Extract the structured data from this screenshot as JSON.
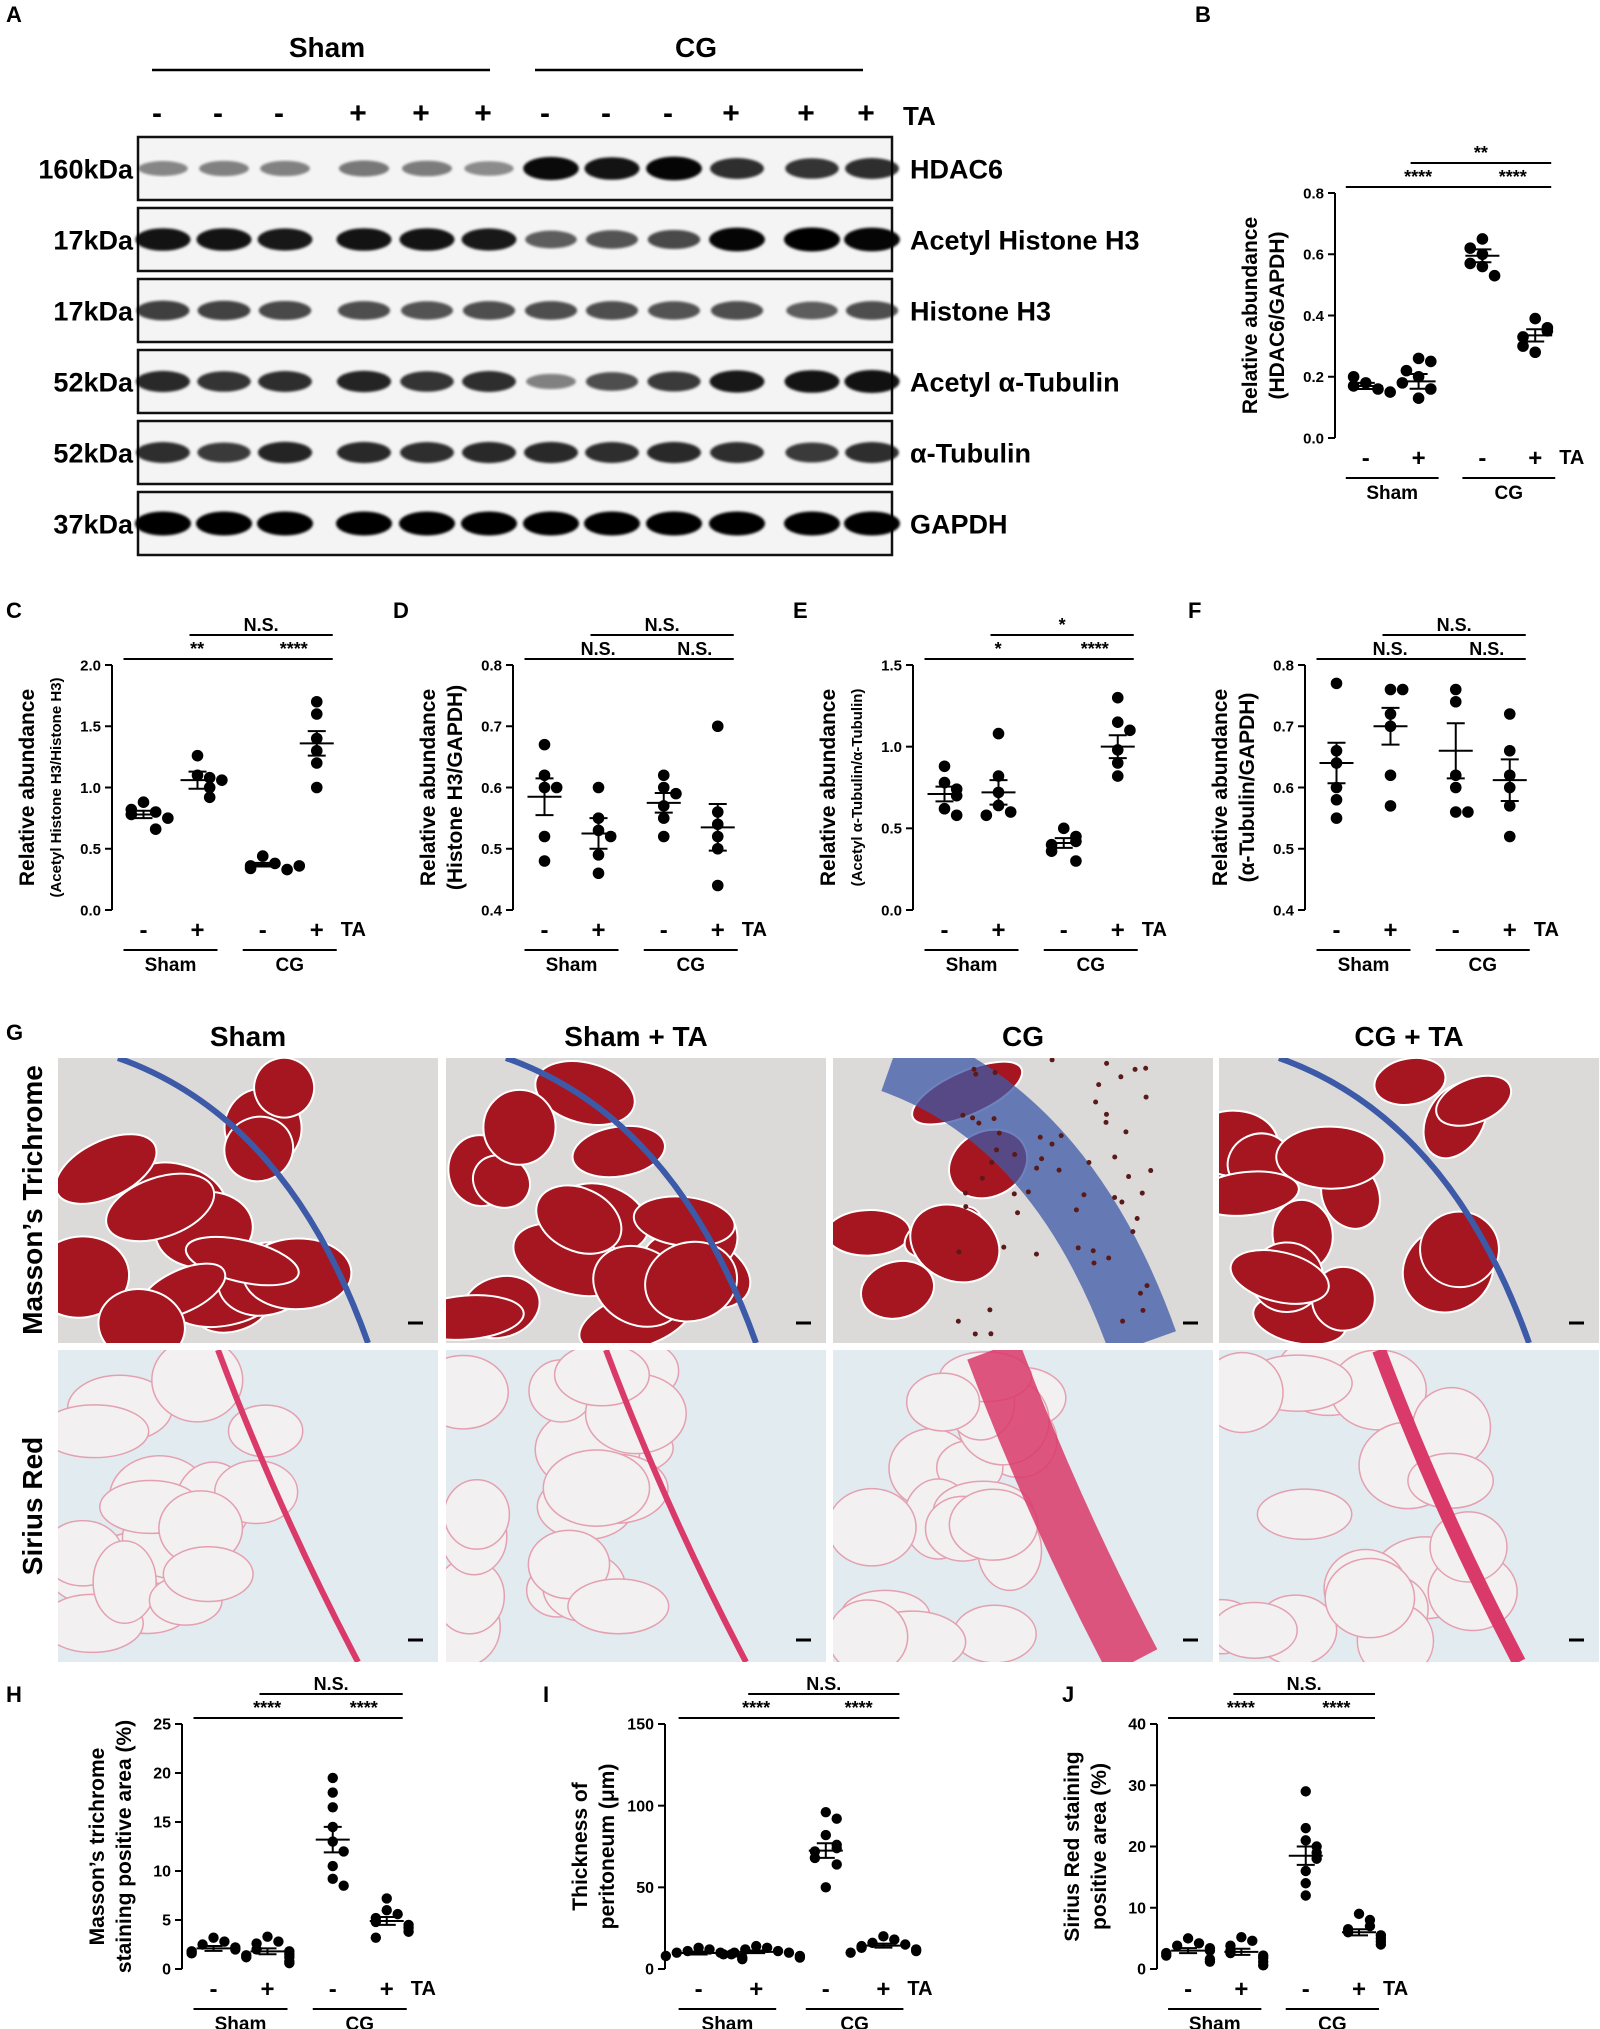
{
  "figure": {
    "panel_letters": [
      "A",
      "B",
      "C",
      "D",
      "E",
      "F",
      "G",
      "H",
      "I",
      "J"
    ]
  },
  "western_blot": {
    "groups": [
      "Sham",
      "CG"
    ],
    "ta_signs": [
      "-",
      "-",
      "-",
      "+",
      "+",
      "+",
      "-",
      "-",
      "-",
      "+",
      "+",
      "+"
    ],
    "ta_label": "TA",
    "rows": [
      {
        "size": "160kDa",
        "protein": "HDAC6",
        "intensity": [
          0.35,
          0.38,
          0.38,
          0.42,
          0.4,
          0.33,
          0.95,
          0.9,
          0.98,
          0.78,
          0.75,
          0.78
        ]
      },
      {
        "size": "17kDa",
        "protein": "Acetyl Histone H3",
        "intensity": [
          0.9,
          0.9,
          0.88,
          0.9,
          0.9,
          0.88,
          0.55,
          0.6,
          0.65,
          0.98,
          1.0,
          0.98
        ]
      },
      {
        "size": "17kDa",
        "protein": "Histone H3",
        "intensity": [
          0.7,
          0.68,
          0.65,
          0.62,
          0.6,
          0.62,
          0.62,
          0.62,
          0.6,
          0.62,
          0.55,
          0.62
        ]
      },
      {
        "size": "52kDa",
        "protein": "Acetyl α-Tubulin",
        "intensity": [
          0.8,
          0.75,
          0.78,
          0.82,
          0.75,
          0.78,
          0.38,
          0.62,
          0.72,
          0.88,
          0.9,
          0.92
        ]
      },
      {
        "size": "52kDa",
        "protein": "α-Tubulin",
        "intensity": [
          0.78,
          0.72,
          0.82,
          0.8,
          0.78,
          0.8,
          0.8,
          0.78,
          0.8,
          0.78,
          0.72,
          0.78
        ]
      },
      {
        "size": "37kDa",
        "protein": "GAPDH",
        "intensity": [
          1.0,
          1.0,
          1.0,
          1.0,
          1.0,
          1.0,
          1.0,
          1.0,
          1.0,
          1.0,
          1.0,
          1.0
        ]
      }
    ]
  },
  "histology": {
    "columns": [
      "Sham",
      "Sham + TA",
      "CG",
      "CG + TA"
    ],
    "rows": [
      "Masson’s Trichrome",
      "Sirius Red"
    ]
  },
  "colors": {
    "masson_background": "#dcdad9",
    "masson_muscle": "#a51620",
    "masson_collagen": "#3d5aa8",
    "sirius_background": "#e2ecf0",
    "sirius_collagen": "#d93a6a"
  },
  "chart_data": [
    {
      "panel": "B",
      "type": "scatter",
      "ylabel": [
        "Relative abundance",
        "(HDAC6/GAPDH)"
      ],
      "ylim": [
        0.0,
        0.8
      ],
      "yticks": [
        0.0,
        0.2,
        0.4,
        0.6,
        0.8
      ],
      "ytick_labels": [
        "0.0",
        "0.2",
        "0.4",
        "0.6",
        "0.8"
      ],
      "categories": [
        "Sham -",
        "Sham +",
        "CG -",
        "CG +"
      ],
      "groups": [
        "Sham",
        "CG"
      ],
      "signs": [
        "-",
        "+",
        "-",
        "+"
      ],
      "ta_label": "TA",
      "values": [
        [
          0.18,
          0.16,
          0.17,
          0.15,
          0.2,
          0.18
        ],
        [
          0.26,
          0.2,
          0.25,
          0.13,
          0.16,
          0.22
        ],
        [
          0.65,
          0.6,
          0.62,
          0.56,
          0.53,
          0.57
        ],
        [
          0.39,
          0.36,
          0.35,
          0.33,
          0.28,
          0.3
        ]
      ],
      "means": [
        0.17,
        0.185,
        0.595,
        0.335
      ],
      "sems": [
        0.01,
        0.024,
        0.021,
        0.02
      ],
      "brackets": [
        {
          "from": 0,
          "to": 2,
          "level": 0,
          "text": "****"
        },
        {
          "from": 2,
          "to": 3,
          "level": 0,
          "text": "****"
        },
        {
          "from": 1,
          "to": 3,
          "level": 1,
          "text": "**"
        }
      ]
    },
    {
      "panel": "C",
      "type": "scatter",
      "ylabel": [
        "Relative abundance",
        "(Acetyl Histone H3/Histone H3)"
      ],
      "ylim": [
        0.0,
        2.0
      ],
      "yticks": [
        0.0,
        0.5,
        1.0,
        1.5,
        2.0
      ],
      "ytick_labels": [
        "0.0",
        "0.5",
        "1.0",
        "1.5",
        "2.0"
      ],
      "categories": [
        "Sham -",
        "Sham +",
        "CG -",
        "CG +"
      ],
      "groups": [
        "Sham",
        "CG"
      ],
      "signs": [
        "-",
        "+",
        "-",
        "+"
      ],
      "ta_label": "TA",
      "values": [
        [
          0.88,
          0.8,
          0.82,
          0.78,
          0.75,
          0.66
        ],
        [
          1.26,
          1.1,
          1.08,
          1.0,
          0.92,
          1.06
        ],
        [
          0.44,
          0.38,
          0.36,
          0.34,
          0.33,
          0.36
        ],
        [
          1.7,
          1.6,
          1.4,
          1.3,
          1.2,
          1.0
        ]
      ],
      "means": [
        0.78,
        1.06,
        0.37,
        1.36
      ],
      "sems": [
        0.03,
        0.07,
        0.015,
        0.1
      ],
      "brackets": [
        {
          "from": 0,
          "to": 2,
          "level": 0,
          "text": "**"
        },
        {
          "from": 2,
          "to": 3,
          "level": 0,
          "text": "****"
        },
        {
          "from": 1,
          "to": 3,
          "level": 1,
          "text": "N.S."
        }
      ]
    },
    {
      "panel": "D",
      "type": "scatter",
      "ylabel": [
        "Relative abundance",
        "(Histone H3/GAPDH)"
      ],
      "ylim": [
        0.4,
        0.8
      ],
      "yticks": [
        0.4,
        0.5,
        0.6,
        0.7,
        0.8
      ],
      "ytick_labels": [
        "0.4",
        "0.5",
        "0.6",
        "0.7",
        "0.8"
      ],
      "categories": [
        "Sham -",
        "Sham +",
        "CG -",
        "CG +"
      ],
      "groups": [
        "Sham",
        "CG"
      ],
      "signs": [
        "-",
        "+",
        "-",
        "+"
      ],
      "ta_label": "TA",
      "values": [
        [
          0.67,
          0.62,
          0.6,
          0.6,
          0.52,
          0.48
        ],
        [
          0.6,
          0.55,
          0.53,
          0.52,
          0.49,
          0.46
        ],
        [
          0.62,
          0.6,
          0.59,
          0.57,
          0.55,
          0.52
        ],
        [
          0.7,
          0.56,
          0.54,
          0.52,
          0.5,
          0.44
        ]
      ],
      "means": [
        0.585,
        0.525,
        0.575,
        0.535
      ],
      "sems": [
        0.03,
        0.025,
        0.016,
        0.038
      ],
      "brackets": [
        {
          "from": 0,
          "to": 2,
          "level": 0,
          "text": "N.S."
        },
        {
          "from": 2,
          "to": 3,
          "level": 0,
          "text": "N.S."
        },
        {
          "from": 1,
          "to": 3,
          "level": 1,
          "text": "N.S."
        }
      ]
    },
    {
      "panel": "E",
      "type": "scatter",
      "ylabel": [
        "Relative abundance",
        "(Acetyl α-Tubulin/α-Tubulin)"
      ],
      "ylim": [
        0.0,
        1.5
      ],
      "yticks": [
        0.0,
        0.5,
        1.0,
        1.5
      ],
      "ytick_labels": [
        "0.0",
        "0.5",
        "1.0",
        "1.5"
      ],
      "categories": [
        "Sham -",
        "Sham +",
        "CG -",
        "CG +"
      ],
      "groups": [
        "Sham",
        "CG"
      ],
      "signs": [
        "-",
        "+",
        "-",
        "+"
      ],
      "ta_label": "TA",
      "values": [
        [
          0.88,
          0.78,
          0.74,
          0.7,
          0.62,
          0.58
        ],
        [
          1.08,
          0.82,
          0.72,
          0.64,
          0.6,
          0.58
        ],
        [
          0.5,
          0.45,
          0.42,
          0.4,
          0.36,
          0.3
        ],
        [
          1.3,
          1.15,
          1.1,
          0.98,
          0.9,
          0.82
        ]
      ],
      "means": [
        0.71,
        0.72,
        0.41,
        1.0
      ],
      "sems": [
        0.045,
        0.075,
        0.03,
        0.07
      ],
      "brackets": [
        {
          "from": 0,
          "to": 2,
          "level": 0,
          "text": "*"
        },
        {
          "from": 2,
          "to": 3,
          "level": 0,
          "text": "****"
        },
        {
          "from": 1,
          "to": 3,
          "level": 1,
          "text": "*"
        }
      ]
    },
    {
      "panel": "F",
      "type": "scatter",
      "ylabel": [
        "Relative abundance",
        "(α-Tubulin/GAPDH)"
      ],
      "ylim": [
        0.4,
        0.8
      ],
      "yticks": [
        0.4,
        0.5,
        0.6,
        0.7,
        0.8
      ],
      "ytick_labels": [
        "0.4",
        "0.5",
        "0.6",
        "0.7",
        "0.8"
      ],
      "categories": [
        "Sham -",
        "Sham +",
        "CG -",
        "CG +"
      ],
      "groups": [
        "Sham",
        "CG"
      ],
      "signs": [
        "-",
        "+",
        "-",
        "+"
      ],
      "ta_label": "TA",
      "values": [
        [
          0.77,
          0.66,
          0.64,
          0.6,
          0.58,
          0.55
        ],
        [
          0.76,
          0.76,
          0.72,
          0.7,
          0.62,
          0.57
        ],
        [
          0.76,
          0.74,
          0.62,
          0.6,
          0.56,
          0.56
        ],
        [
          0.72,
          0.66,
          0.62,
          0.6,
          0.57,
          0.52
        ]
      ],
      "means": [
        0.64,
        0.7,
        0.66,
        0.612
      ],
      "sems": [
        0.033,
        0.03,
        0.045,
        0.034
      ],
      "brackets": [
        {
          "from": 0,
          "to": 2,
          "level": 0,
          "text": "N.S."
        },
        {
          "from": 2,
          "to": 3,
          "level": 0,
          "text": "N.S."
        },
        {
          "from": 1,
          "to": 3,
          "level": 1,
          "text": "N.S."
        }
      ]
    },
    {
      "panel": "H",
      "type": "scatter",
      "ylabel": [
        "Masson’s trichrome",
        "staining positive area (%)"
      ],
      "ylim": [
        0,
        25
      ],
      "yticks": [
        0,
        5,
        10,
        15,
        20,
        25
      ],
      "ytick_labels": [
        "0",
        "5",
        "10",
        "15",
        "20",
        "25"
      ],
      "categories": [
        "Sham -",
        "Sham +",
        "CG -",
        "CG +"
      ],
      "groups": [
        "Sham",
        "CG"
      ],
      "signs": [
        "-",
        "+",
        "-",
        "+"
      ],
      "ta_label": "TA",
      "values": [
        [
          3.2,
          2.8,
          2.5,
          2.2,
          2.0,
          1.8,
          1.6,
          1.4,
          1.2
        ],
        [
          3.3,
          2.8,
          2.6,
          2.0,
          1.8,
          1.5,
          1.2,
          0.8,
          0.6
        ],
        [
          19.5,
          18.0,
          16.5,
          14.5,
          13.0,
          12.0,
          10.5,
          9.2,
          8.5
        ],
        [
          7.2,
          6.0,
          5.6,
          5.2,
          4.8,
          4.5,
          4.2,
          3.8,
          3.2
        ]
      ],
      "means": [
        2.1,
        1.8,
        13.2,
        4.9
      ],
      "sems": [
        0.25,
        0.3,
        1.3,
        0.4
      ],
      "brackets": [
        {
          "from": 0,
          "to": 2,
          "level": 0,
          "text": "****"
        },
        {
          "from": 2,
          "to": 3,
          "level": 0,
          "text": "****"
        },
        {
          "from": 1,
          "to": 3,
          "level": 1,
          "text": "N.S."
        }
      ]
    },
    {
      "panel": "I",
      "type": "scatter",
      "ylabel": [
        "Thickness of",
        "peritoneum (μm)"
      ],
      "ylim": [
        0,
        150
      ],
      "yticks": [
        0,
        50,
        100,
        150
      ],
      "ytick_labels": [
        "0",
        "50",
        "100",
        "150"
      ],
      "categories": [
        "Sham -",
        "Sham +",
        "CG -",
        "CG +"
      ],
      "groups": [
        "Sham",
        "CG"
      ],
      "signs": [
        "-",
        "+",
        "-",
        "+"
      ],
      "ta_label": "TA",
      "values": [
        [
          13,
          12,
          11,
          10,
          10,
          9,
          8,
          7,
          6
        ],
        [
          14,
          13,
          12,
          11,
          10,
          10,
          9,
          8,
          7
        ],
        [
          96,
          92,
          82,
          76,
          74,
          72,
          68,
          64,
          50
        ],
        [
          20,
          18,
          16,
          15,
          14,
          13,
          12,
          11,
          10
        ]
      ],
      "means": [
        9.8,
        10.5,
        72.5,
        14.3
      ],
      "sems": [
        0.9,
        0.8,
        4.5,
        1.2
      ],
      "brackets": [
        {
          "from": 0,
          "to": 2,
          "level": 0,
          "text": "****"
        },
        {
          "from": 2,
          "to": 3,
          "level": 0,
          "text": "****"
        },
        {
          "from": 1,
          "to": 3,
          "level": 1,
          "text": "N.S."
        }
      ]
    },
    {
      "panel": "J",
      "type": "scatter",
      "ylabel": [
        "Sirius Red staining",
        "positive area (%)"
      ],
      "ylim": [
        0,
        40
      ],
      "yticks": [
        0,
        10,
        20,
        30,
        40
      ],
      "ytick_labels": [
        "0",
        "10",
        "20",
        "30",
        "40"
      ],
      "categories": [
        "Sham -",
        "Sham +",
        "CG -",
        "CG +"
      ],
      "groups": [
        "Sham",
        "CG"
      ],
      "signs": [
        "-",
        "+",
        "-",
        "+"
      ],
      "ta_label": "TA",
      "values": [
        [
          5.0,
          4.2,
          3.8,
          3.4,
          3.0,
          2.6,
          2.2,
          1.6,
          1.2
        ],
        [
          5.2,
          4.6,
          3.8,
          3.0,
          2.6,
          2.2,
          1.8,
          1.2,
          0.6
        ],
        [
          29.0,
          23.0,
          21.0,
          20.0,
          19.0,
          18.0,
          16.0,
          14.0,
          12.0
        ],
        [
          9.0,
          8.0,
          7.0,
          6.5,
          6.0,
          5.5,
          5.0,
          4.5,
          4.0
        ]
      ],
      "means": [
        3.0,
        2.8,
        18.5,
        6.0
      ],
      "sems": [
        0.4,
        0.5,
        1.5,
        0.5
      ],
      "brackets": [
        {
          "from": 0,
          "to": 2,
          "level": 0,
          "text": "****"
        },
        {
          "from": 2,
          "to": 3,
          "level": 0,
          "text": "****"
        },
        {
          "from": 1,
          "to": 3,
          "level": 1,
          "text": "N.S."
        }
      ]
    }
  ]
}
